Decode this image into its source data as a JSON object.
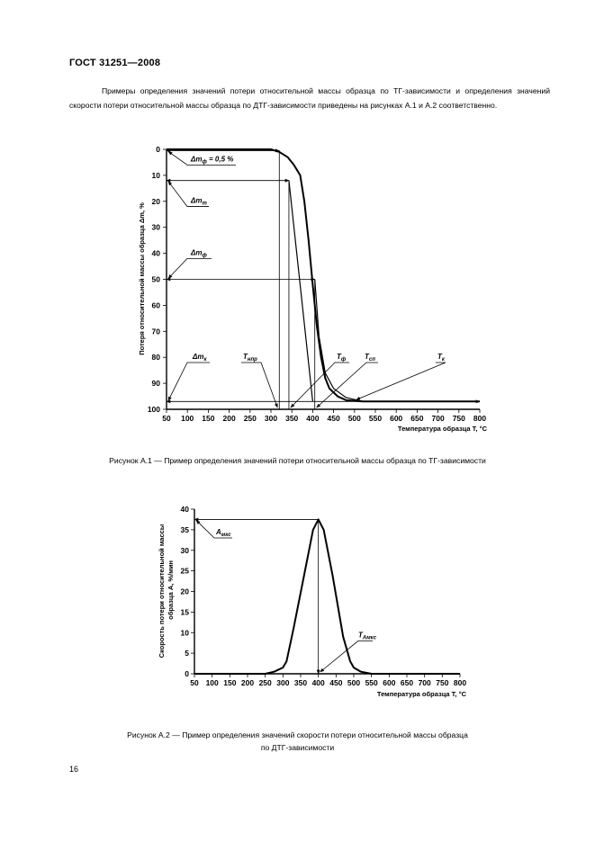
{
  "header": {
    "title": "ГОСТ 31251—2008"
  },
  "intro": {
    "text": "Примеры определения значений потери относительной массы образца по ТГ-зависимости и определения значений скорости потери относительной массы образца по ДТГ-зависимости приведены на рисунках А.1 и А.2 соответственно."
  },
  "chart_data": [
    {
      "type": "line",
      "title": "",
      "xlabel": "Температура образца T, °C",
      "ylabel": "Потеря относительной массы образца Δm, %",
      "xlim": [
        50,
        800
      ],
      "ylim": [
        100,
        0
      ],
      "x_ticks": [
        50,
        100,
        150,
        200,
        250,
        300,
        350,
        400,
        450,
        500,
        550,
        600,
        650,
        700,
        750,
        800
      ],
      "y_ticks": [
        0,
        10,
        20,
        30,
        40,
        50,
        60,
        70,
        80,
        90,
        100
      ],
      "series": [
        {
          "x": [
            50,
            300,
            320,
            340,
            355,
            370,
            380,
            390,
            400,
            410,
            420,
            430,
            440,
            460,
            480,
            520,
            600,
            800
          ],
          "y": [
            0,
            0,
            1,
            3,
            6,
            10,
            20,
            35,
            52,
            68,
            80,
            88,
            92,
            95,
            96.5,
            97,
            97,
            97
          ]
        },
        {
          "x": [
            405,
            415,
            430,
            450,
            480,
            520,
            600,
            800
          ],
          "y": [
            50,
            72,
            86,
            92,
            95.5,
            97,
            97,
            97
          ]
        }
      ],
      "annotations": [
        {
          "label_base": "Δm",
          "label_sub": "ф",
          "label_suffix": " = 0,5 %"
        },
        {
          "label_base": "Δm",
          "label_sub": "т",
          "label_suffix": ""
        },
        {
          "label_base": "Δm",
          "label_sub": "ф",
          "label_suffix": ""
        },
        {
          "label_base": "Δm",
          "label_sub": "к",
          "label_suffix": ""
        },
        {
          "label_base": "T",
          "label_sub": "нпр",
          "label_suffix": ""
        },
        {
          "label_base": "T",
          "label_sub": "ф",
          "label_suffix": ""
        },
        {
          "label_base": "T",
          "label_sub": "сп",
          "label_suffix": ""
        },
        {
          "label_base": "T",
          "label_sub": "к",
          "label_suffix": ""
        }
      ]
    },
    {
      "type": "line",
      "title": "",
      "xlabel": "Температура образца T, °C",
      "ylabel": "Скорость потери относительной массы образца A, %/мин",
      "xlim": [
        50,
        800
      ],
      "ylim": [
        0,
        40
      ],
      "x_ticks": [
        50,
        100,
        150,
        200,
        250,
        300,
        350,
        400,
        450,
        500,
        550,
        600,
        650,
        700,
        750,
        800
      ],
      "y_ticks": [
        0,
        5,
        10,
        15,
        20,
        25,
        30,
        35,
        40
      ],
      "series": [
        {
          "x": [
            50,
            250,
            275,
            300,
            310,
            330,
            360,
            385,
            400,
            415,
            440,
            470,
            490,
            500,
            520,
            550,
            800
          ],
          "y": [
            0,
            0,
            0.5,
            1.5,
            3,
            11,
            24,
            35,
            37.5,
            35,
            24,
            9,
            3,
            1.5,
            0.5,
            0,
            0
          ]
        }
      ],
      "annotations": [
        {
          "label_base": "A",
          "label_sub": "мкс",
          "label_suffix": ""
        },
        {
          "label_base": "T",
          "label_sub": "Aмкс",
          "label_suffix": ""
        }
      ]
    }
  ],
  "captions": {
    "fig1": "Рисунок А.1 — Пример определения значений потери относительной массы образца по ТГ-зависимости",
    "fig2_line1": "Рисунок А.2 — Пример определения значений скорости потери относительной массы образца",
    "fig2_line2": "по ДТГ-зависимости"
  },
  "page_number": "16"
}
